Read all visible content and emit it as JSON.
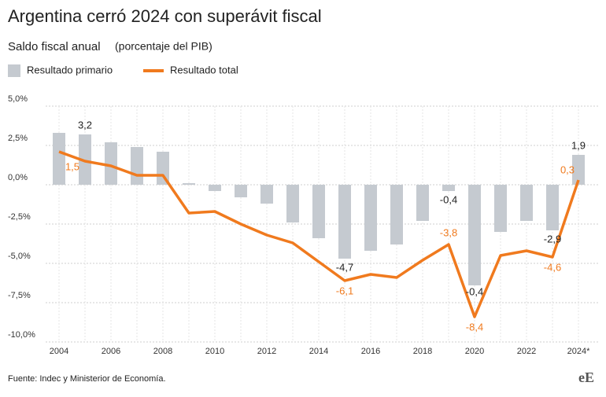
{
  "chart_data": {
    "type": "bar_line",
    "title": "Argentina cerró 2024 con superávit fiscal",
    "subtitle": "Saldo fiscal anual",
    "subtitle_note": "(porcentaje del PIB)",
    "source": "Fuente: Indec y Ministerior de Economía.",
    "logo": "eE",
    "categories": [
      "2004",
      null,
      "2006",
      null,
      "2008",
      null,
      "2010",
      null,
      "2012",
      null,
      "2014",
      null,
      "2016",
      null,
      "2018",
      null,
      "2020",
      null,
      "2022",
      null,
      "2024*"
    ],
    "series": [
      {
        "name": "Resultado primario",
        "type": "bar",
        "color": "#c5cad0",
        "values": [
          3.3,
          3.2,
          2.7,
          2.4,
          2.1,
          0.1,
          -0.4,
          -0.8,
          -1.2,
          -2.4,
          -3.4,
          -4.7,
          -4.2,
          -3.8,
          -2.3,
          -0.4,
          -6.4,
          -3.0,
          -2.3,
          -2.9,
          1.9
        ],
        "value_labels": [
          null,
          "3,2",
          null,
          null,
          null,
          null,
          null,
          null,
          null,
          null,
          null,
          "-4,7",
          null,
          null,
          null,
          "-0,4",
          null,
          null,
          null,
          "-2,9",
          "1,9"
        ]
      },
      {
        "name": "Resultado total",
        "type": "line",
        "color": "#f07a1e",
        "values": [
          2.1,
          1.5,
          1.2,
          0.6,
          0.6,
          -1.8,
          -1.7,
          -2.5,
          -3.2,
          -3.7,
          -4.9,
          -6.1,
          -5.7,
          -5.9,
          -4.8,
          -3.8,
          -8.4,
          -4.5,
          -4.2,
          -4.6,
          0.3
        ],
        "value_labels": [
          null,
          "1,5",
          null,
          null,
          null,
          null,
          null,
          null,
          null,
          null,
          null,
          "-6,1",
          null,
          null,
          null,
          "-3,8",
          "-8,4",
          null,
          null,
          "-4,6",
          "0,3"
        ]
      }
    ],
    "annotations": [
      "-0,4"
    ],
    "ylim": [
      -10,
      5
    ],
    "yticks": [
      {
        "value": 5,
        "label": "5,0%"
      },
      {
        "value": 2.5,
        "label": "2,5%"
      },
      {
        "value": 0,
        "label": "0,0%"
      },
      {
        "value": -2.5,
        "label": "-2,5%"
      },
      {
        "value": -5,
        "label": "-5,0%"
      },
      {
        "value": -7.5,
        "label": "-7,5%"
      },
      {
        "value": -10,
        "label": "-10,0%"
      }
    ],
    "grid": true
  }
}
